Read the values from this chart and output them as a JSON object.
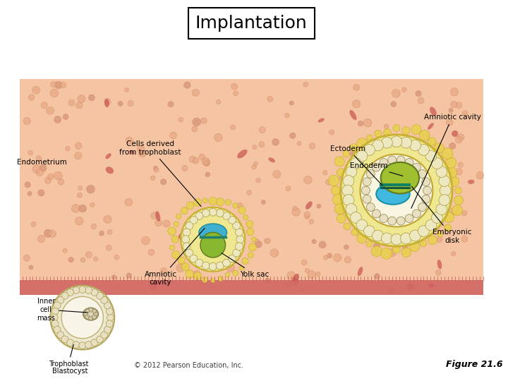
{
  "title": "Implantation",
  "title_fontsize": 18,
  "title_box": true,
  "background_color": "#FFFFFF",
  "endometrium_color": "#F5C5A3",
  "endometrium_texture_color": "#E8A882",
  "pink_band_color": "#E87070",
  "caption": "© 2012 Pearson Education, Inc.",
  "figure_label": "Figure 21.6",
  "labels": {
    "amniotic_cavity": "Amniotic cavity",
    "ectoderm": "Ectoderm",
    "endoderm": "Endoderm",
    "endometrium": "Endometrium",
    "cells_derived": "Cells derived\nfrom trophoblast",
    "inner_cell_mass": "Inner\ncell\nmass",
    "trophoblast": "Trophoblast",
    "blastocyst": "Blastocyst",
    "amniotic_cavity2": "Amniotic\ncavity",
    "yolk_sac": "Yolk sac",
    "embryonic_disk": "Embryonic\ndisk"
  },
  "colors": {
    "trophoblast_ring": "#F0E060",
    "trophoblast_ring2": "#D4C040",
    "inner_cell_mass": "#EEE8D0",
    "blastocoel": "#F8F4E8",
    "blastocyst_outer": "#C8B870",
    "blastocyst_ring_outer": "#E0D090",
    "amniotic_cavity_blue": "#50C0E0",
    "yolk_sac_green": "#90C040",
    "ectoderm_dark": "#209080",
    "endoderm_olive": "#A0B020",
    "embryo_disk_line": "#404040",
    "red_blood_cells": "#C04040",
    "pink_border": "#D06060"
  }
}
